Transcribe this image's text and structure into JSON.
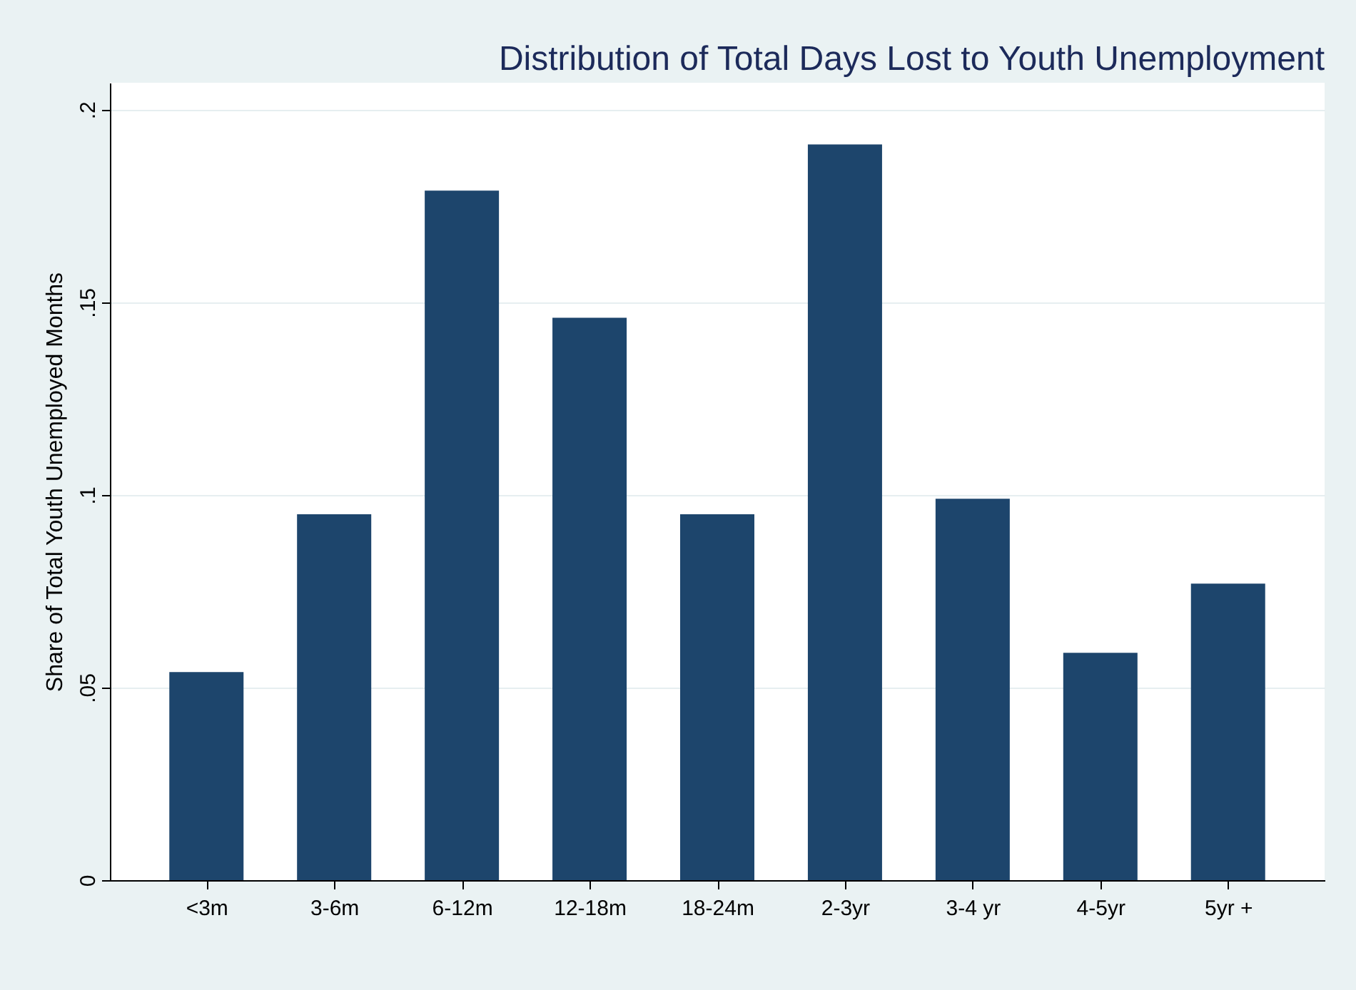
{
  "chart_data": {
    "type": "bar",
    "title": "Distribution of Total Days Lost to Youth Unemployment",
    "ylabel": "Share of Total Youth Unemployed Months",
    "categories": [
      "<3m",
      "3-6m",
      "6-12m",
      "12-18m",
      "18-24m",
      "2-3yr",
      "3-4 yr",
      "4-5yr",
      "5yr +"
    ],
    "values": [
      0.054,
      0.095,
      0.179,
      0.146,
      0.095,
      0.191,
      0.099,
      0.059,
      0.077
    ],
    "color": "#1d456c",
    "ylim": [
      0,
      0.207
    ],
    "yticks": [
      0,
      {
        "value": 0.05,
        "label": ".05"
      },
      {
        "value": 0.1,
        "label": ".1"
      },
      {
        "value": 0.15,
        "label": ".15"
      },
      {
        "value": 0.2,
        "label": ".2"
      }
    ],
    "grid": "y"
  }
}
